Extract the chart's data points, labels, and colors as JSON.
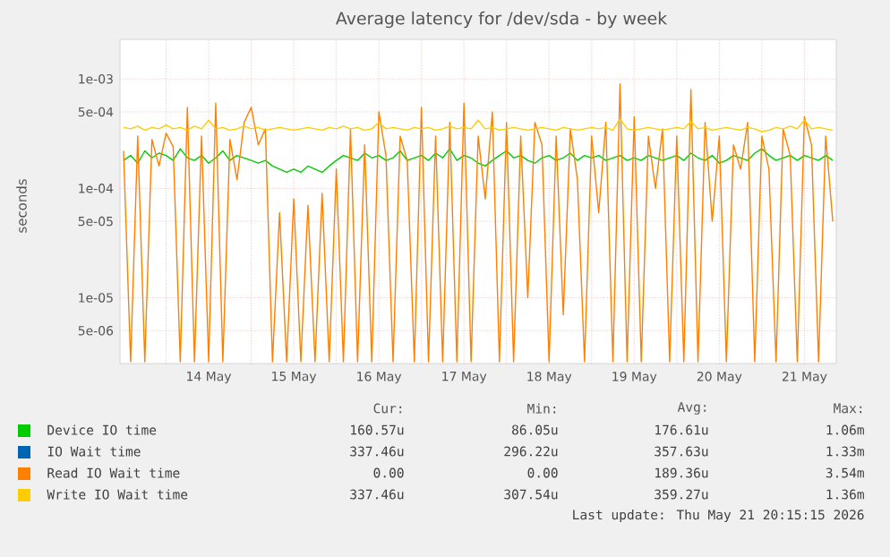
{
  "chart_data": {
    "type": "line",
    "title": "Average latency for /dev/sda - by week",
    "ylabel": "seconds",
    "log": "y",
    "grid": true,
    "legend": "bottom",
    "xlim": [
      "2026-05-13T11:00",
      "2026-05-21T21:00"
    ],
    "xticks": [
      {
        "value": "2026-05-14T00:00",
        "label": null
      },
      {
        "value": "2026-05-14T12:00",
        "label": "14 May"
      },
      {
        "value": "2026-05-15T00:00",
        "label": null
      },
      {
        "value": "2026-05-15T12:00",
        "label": "15 May"
      },
      {
        "value": "2026-05-16T00:00",
        "label": null
      },
      {
        "value": "2026-05-16T12:00",
        "label": "16 May"
      },
      {
        "value": "2026-05-17T00:00",
        "label": null
      },
      {
        "value": "2026-05-17T12:00",
        "label": "17 May"
      },
      {
        "value": "2026-05-18T00:00",
        "label": null
      },
      {
        "value": "2026-05-18T12:00",
        "label": "18 May"
      },
      {
        "value": "2026-05-19T00:00",
        "label": null
      },
      {
        "value": "2026-05-19T12:00",
        "label": "19 May"
      },
      {
        "value": "2026-05-20T00:00",
        "label": null
      },
      {
        "value": "2026-05-20T12:00",
        "label": "20 May"
      },
      {
        "value": "2026-05-21T00:00",
        "label": null
      },
      {
        "value": "2026-05-21T12:00",
        "label": "21 May"
      }
    ],
    "ylim": [
      2.5e-06,
      0.0023
    ],
    "yticks": [
      {
        "value": 5e-06,
        "label": "5e-06"
      },
      {
        "value": 1e-05,
        "label": "1e-05"
      },
      {
        "value": 5e-05,
        "label": "5e-05"
      },
      {
        "value": 0.0001,
        "label": "1e-04"
      },
      {
        "value": 0.0005,
        "label": "5e-04"
      },
      {
        "value": 0.001,
        "label": "1e-03"
      }
    ],
    "x": [
      "2026-05-13T12:00",
      "2026-05-13T14:00",
      "2026-05-13T16:00",
      "2026-05-13T18:00",
      "2026-05-13T20:00",
      "2026-05-13T22:00",
      "2026-05-14T00:00",
      "2026-05-14T02:00",
      "2026-05-14T04:00",
      "2026-05-14T06:00",
      "2026-05-14T08:00",
      "2026-05-14T10:00",
      "2026-05-14T12:00",
      "2026-05-14T14:00",
      "2026-05-14T16:00",
      "2026-05-14T18:00",
      "2026-05-14T20:00",
      "2026-05-14T22:00",
      "2026-05-15T00:00",
      "2026-05-15T02:00",
      "2026-05-15T04:00",
      "2026-05-15T06:00",
      "2026-05-15T08:00",
      "2026-05-15T10:00",
      "2026-05-15T12:00",
      "2026-05-15T14:00",
      "2026-05-15T16:00",
      "2026-05-15T18:00",
      "2026-05-15T20:00",
      "2026-05-15T22:00",
      "2026-05-16T00:00",
      "2026-05-16T02:00",
      "2026-05-16T04:00",
      "2026-05-16T06:00",
      "2026-05-16T08:00",
      "2026-05-16T10:00",
      "2026-05-16T12:00",
      "2026-05-16T14:00",
      "2026-05-16T16:00",
      "2026-05-16T18:00",
      "2026-05-16T20:00",
      "2026-05-16T22:00",
      "2026-05-17T00:00",
      "2026-05-17T02:00",
      "2026-05-17T04:00",
      "2026-05-17T06:00",
      "2026-05-17T08:00",
      "2026-05-17T10:00",
      "2026-05-17T12:00",
      "2026-05-17T14:00",
      "2026-05-17T16:00",
      "2026-05-17T18:00",
      "2026-05-17T20:00",
      "2026-05-17T22:00",
      "2026-05-18T00:00",
      "2026-05-18T02:00",
      "2026-05-18T04:00",
      "2026-05-18T06:00",
      "2026-05-18T08:00",
      "2026-05-18T10:00",
      "2026-05-18T12:00",
      "2026-05-18T14:00",
      "2026-05-18T16:00",
      "2026-05-18T18:00",
      "2026-05-18T20:00",
      "2026-05-18T22:00",
      "2026-05-19T00:00",
      "2026-05-19T02:00",
      "2026-05-19T04:00",
      "2026-05-19T06:00",
      "2026-05-19T08:00",
      "2026-05-19T10:00",
      "2026-05-19T12:00",
      "2026-05-19T14:00",
      "2026-05-19T16:00",
      "2026-05-19T18:00",
      "2026-05-19T20:00",
      "2026-05-19T22:00",
      "2026-05-20T00:00",
      "2026-05-20T02:00",
      "2026-05-20T04:00",
      "2026-05-20T06:00",
      "2026-05-20T08:00",
      "2026-05-20T10:00",
      "2026-05-20T12:00",
      "2026-05-20T14:00",
      "2026-05-20T16:00",
      "2026-05-20T18:00",
      "2026-05-20T20:00",
      "2026-05-20T22:00",
      "2026-05-21T00:00",
      "2026-05-21T02:00",
      "2026-05-21T04:00",
      "2026-05-21T06:00",
      "2026-05-21T08:00",
      "2026-05-21T10:00",
      "2026-05-21T12:00",
      "2026-05-21T14:00",
      "2026-05-21T16:00",
      "2026-05-21T18:00",
      "2026-05-21T20:00"
    ],
    "series": [
      {
        "name": "Device IO time",
        "color": "#00cc00",
        "values": [
          0.00018,
          0.0002,
          0.00017,
          0.00022,
          0.00019,
          0.00021,
          0.0002,
          0.00018,
          0.00023,
          0.00019,
          0.00018,
          0.0002,
          0.00017,
          0.00019,
          0.00022,
          0.00018,
          0.0002,
          0.00019,
          0.00018,
          0.00017,
          0.00018,
          0.00016,
          0.00015,
          0.00014,
          0.00015,
          0.00014,
          0.00016,
          0.00015,
          0.00014,
          0.00016,
          0.00018,
          0.0002,
          0.00019,
          0.00018,
          0.00021,
          0.00019,
          0.0002,
          0.00018,
          0.00019,
          0.00022,
          0.00018,
          0.00019,
          0.0002,
          0.00018,
          0.00021,
          0.00019,
          0.00023,
          0.00018,
          0.0002,
          0.00019,
          0.00017,
          0.00016,
          0.00018,
          0.0002,
          0.00022,
          0.00019,
          0.0002,
          0.00018,
          0.00017,
          0.00019,
          0.0002,
          0.00018,
          0.00019,
          0.00021,
          0.00018,
          0.0002,
          0.00019,
          0.0002,
          0.00018,
          0.00019,
          0.0002,
          0.00018,
          0.00019,
          0.00018,
          0.0002,
          0.00019,
          0.00018,
          0.00019,
          0.0002,
          0.00018,
          0.00021,
          0.00019,
          0.00018,
          0.0002,
          0.00017,
          0.00018,
          0.0002,
          0.00019,
          0.00018,
          0.00021,
          0.00023,
          0.0002,
          0.00018,
          0.00019,
          0.0002,
          0.00018,
          0.0002,
          0.00019,
          0.00018,
          0.0002,
          0.00018
        ]
      },
      {
        "name": "IO Wait time",
        "color": "#0066b3",
        "values": [
          null,
          null,
          null,
          null,
          null,
          null,
          null,
          null,
          null,
          null,
          null,
          null,
          null,
          null,
          null,
          null,
          null,
          null,
          null,
          null,
          null,
          null,
          null,
          null,
          null,
          null,
          null,
          null,
          null,
          null,
          null,
          null,
          null,
          null,
          null,
          null,
          null,
          null,
          null,
          null,
          null,
          null,
          null,
          null,
          null,
          null,
          null,
          null,
          null,
          null,
          null,
          null,
          null,
          null,
          null,
          null,
          null,
          null,
          null,
          null,
          null,
          null,
          null,
          null,
          null,
          null,
          null,
          null,
          null,
          null,
          null,
          null,
          null,
          null,
          null,
          null,
          null,
          null,
          null,
          null,
          null,
          null,
          null,
          null,
          null,
          null,
          null,
          null,
          null,
          null,
          null,
          null,
          null,
          null,
          null,
          null,
          null,
          null,
          null,
          null,
          null
        ]
      },
      {
        "name": "Read IO Wait time",
        "color": "#ff8000",
        "values": [
          0.00022,
          2.6e-06,
          0.0003,
          2.6e-06,
          0.00028,
          0.00016,
          0.00032,
          0.00024,
          2.6e-06,
          0.00055,
          2.6e-06,
          0.0003,
          2.6e-06,
          0.0006,
          2.6e-06,
          0.00028,
          0.00012,
          0.0004,
          0.00055,
          0.00025,
          0.00035,
          2.6e-06,
          6e-05,
          2.6e-06,
          8e-05,
          2.6e-06,
          7e-05,
          2.6e-06,
          9e-05,
          2.6e-06,
          0.00015,
          2.6e-06,
          0.00035,
          2.6e-06,
          0.00025,
          2.6e-06,
          0.0005,
          0.0002,
          2.6e-06,
          0.0003,
          0.00018,
          2.6e-06,
          0.00055,
          2.6e-06,
          0.0003,
          2.6e-06,
          0.0004,
          2.6e-06,
          0.0006,
          2.6e-06,
          0.0003,
          8e-05,
          0.0005,
          2.6e-06,
          0.0004,
          2.6e-06,
          0.0003,
          1e-05,
          0.0004,
          0.00025,
          2.6e-06,
          0.0003,
          7e-06,
          0.00035,
          0.00012,
          2.6e-06,
          0.0003,
          6e-05,
          0.0004,
          2.6e-06,
          0.0009,
          2.6e-06,
          0.00045,
          2.6e-06,
          0.0003,
          0.0001,
          0.00035,
          2.6e-06,
          0.0003,
          2.6e-06,
          0.0008,
          2.6e-06,
          0.0004,
          5e-05,
          0.0003,
          2.6e-06,
          0.00025,
          0.00015,
          0.0004,
          2.6e-06,
          0.0003,
          0.00015,
          2.6e-06,
          0.00035,
          0.0002,
          2.6e-06,
          0.00045,
          0.00025,
          2.6e-06,
          0.0003,
          5e-05
        ]
      },
      {
        "name": "Write IO Wait time",
        "color": "#ffcc00",
        "values": [
          0.00036,
          0.00035,
          0.00037,
          0.00034,
          0.00036,
          0.00035,
          0.00038,
          0.00035,
          0.00036,
          0.00034,
          0.00037,
          0.00035,
          0.00042,
          0.00035,
          0.00036,
          0.00034,
          0.00035,
          0.00037,
          0.00035,
          0.00036,
          0.00034,
          0.00035,
          0.00036,
          0.00035,
          0.00034,
          0.00035,
          0.00036,
          0.00035,
          0.00034,
          0.00036,
          0.00035,
          0.00037,
          0.00035,
          0.00036,
          0.00034,
          0.00035,
          0.0004,
          0.00035,
          0.00036,
          0.00035,
          0.00034,
          0.00036,
          0.00035,
          0.00036,
          0.00034,
          0.00035,
          0.00037,
          0.00035,
          0.00036,
          0.00035,
          0.00042,
          0.00035,
          0.00036,
          0.00034,
          0.00035,
          0.00036,
          0.00035,
          0.00034,
          0.00035,
          0.00036,
          0.00035,
          0.00034,
          0.00036,
          0.00035,
          0.00034,
          0.00035,
          0.00036,
          0.00035,
          0.00036,
          0.00034,
          0.00043,
          0.00035,
          0.00034,
          0.00035,
          0.00036,
          0.00035,
          0.00034,
          0.00035,
          0.00036,
          0.00035,
          0.00041,
          0.00035,
          0.00036,
          0.00034,
          0.00035,
          0.00036,
          0.00035,
          0.00034,
          0.00036,
          0.00035,
          0.00033,
          0.00034,
          0.00036,
          0.00035,
          0.00037,
          0.00035,
          0.00042,
          0.00035,
          0.00036,
          0.00035,
          0.00034
        ]
      }
    ],
    "annotations": [
      "Cur:",
      "Min:",
      "Avg:",
      "Max:",
      "160.57u",
      "86.05u",
      "176.61u",
      "1.06m",
      "337.46u",
      "296.22u",
      "357.63u",
      "1.33m",
      "0.00",
      "0.00",
      "189.36u",
      "3.54m",
      "337.46u",
      "307.54u",
      "359.27u",
      "1.36m",
      "Last update: Thu May 21 20:15:15 2026"
    ]
  }
}
